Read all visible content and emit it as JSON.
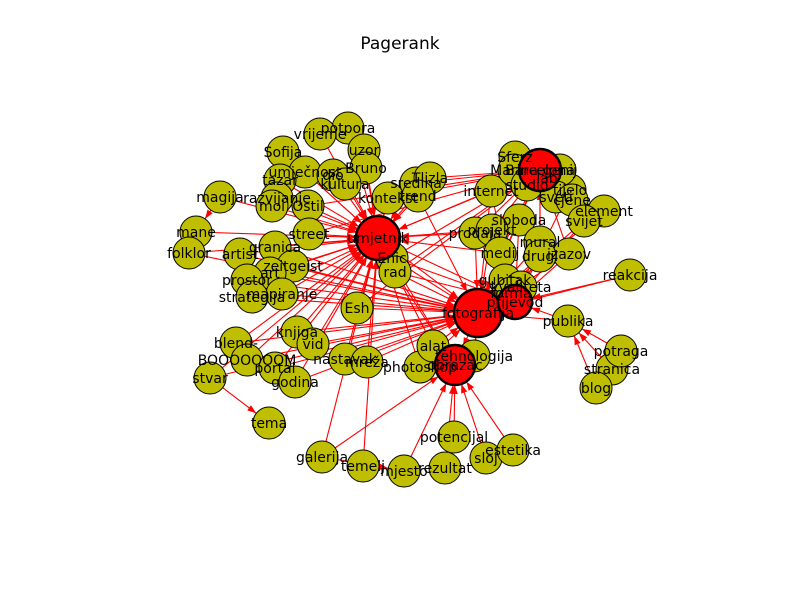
{
  "title": "Pagerank",
  "colors": {
    "node": "#bfbf00",
    "hub": "#ff0000",
    "edge": "#ff0000",
    "outline": "#000000"
  },
  "nodes": {
    "umjetnik": {
      "label": "umjetnik",
      "hub": true
    },
    "fotografija": {
      "label": "fotografija",
      "hub": true
    },
    "dizajn": {
      "label": "Barcelona",
      "hub": true
    },
    "obrazac": {
      "label": "obrazac",
      "hub": true
    },
    "prijevod": {
      "label": "prijevod",
      "hub": true
    },
    "potpora": {
      "label": "potpora"
    },
    "vrijeme": {
      "label": "vrijeme"
    },
    "uzor": {
      "label": "uzor"
    },
    "sofija": {
      "label": "Sofija"
    },
    "bruno": {
      "label": "Bruno"
    },
    "umjecnost": {
      "label": "umječnost"
    },
    "tazar": {
      "label": "tazar"
    },
    "dio": {
      "label": "dio"
    },
    "kultura": {
      "label": "kultura"
    },
    "razvijanje": {
      "label": "razvijanje"
    },
    "magija": {
      "label": "magija"
    },
    "moi": {
      "label": "moi"
    },
    "ostil": {
      "label": "Ostil"
    },
    "kontekst": {
      "label": "kontekst"
    },
    "sredina": {
      "label": "sredina"
    },
    "tlizla": {
      "label": "Tlizla"
    },
    "trend": {
      "label": "trend"
    },
    "mane": {
      "label": "mane"
    },
    "folklor": {
      "label": "folklor"
    },
    "artist": {
      "label": "artist"
    },
    "granica": {
      "label": "granica"
    },
    "street": {
      "label": "street"
    },
    "zeitgeist": {
      "label": "zeitgeist"
    },
    "enic": {
      "label": "Enic"
    },
    "rad": {
      "label": "rad"
    },
    "art": {
      "label": "art"
    },
    "prostor": {
      "label": "prostor"
    },
    "mapiranje": {
      "label": "mapiranje"
    },
    "strategija": {
      "label": "strategija"
    },
    "esh": {
      "label": "Esh"
    },
    "knjiga": {
      "label": "knjiga"
    },
    "blend": {
      "label": "blend-"
    },
    "vid": {
      "label": "vid"
    },
    "booom": {
      "label": "BOOOOOOOM"
    },
    "portal": {
      "label": "portal"
    },
    "stvar": {
      "label": "stvar"
    },
    "godina": {
      "label": "godina"
    },
    "nastavak": {
      "label": "nastavak"
    },
    "mreza": {
      "label": "mreža"
    },
    "tema": {
      "label": "tema"
    },
    "photoshop": {
      "label": "photoshop"
    },
    "alat": {
      "label": "alat"
    },
    "tehnologija": {
      "label": "tehnologija"
    },
    "galerija": {
      "label": "galerija"
    },
    "temelj": {
      "label": "temelj"
    },
    "mjesto": {
      "label": "mjesto"
    },
    "rezultat": {
      "label": "rezultat"
    },
    "potencijal": {
      "label": "potencijal"
    },
    "sloj": {
      "label": "sloj"
    },
    "estetika": {
      "label": "estetika"
    },
    "internet": {
      "label": "internet"
    },
    "sferz": {
      "label": "Sferz"
    },
    "marina": {
      "label": "Marina"
    },
    "studio": {
      "label": "studio"
    },
    "lab": {
      "label": "lab"
    },
    "tijelo": {
      "label": "tijelo"
    },
    "genij": {
      "label": "genij"
    },
    "element": {
      "label": "element"
    },
    "sveti": {
      "label": "sveti"
    },
    "cjene": {
      "label": "cjene"
    },
    "svijet": {
      "label": "svijet"
    },
    "sloboda": {
      "label": "sloboda"
    },
    "prodaja": {
      "label": "prodaja"
    },
    "projekt": {
      "label": "projekt"
    },
    "mural": {
      "label": "mural"
    },
    "izazov": {
      "label": "izazov"
    },
    "medij": {
      "label": "medij"
    },
    "drugi": {
      "label": "drugi"
    },
    "gubitak": {
      "label": "gubitak"
    },
    "kvaliteta": {
      "label": "kvaliteta"
    },
    "forma": {
      "label": "forma"
    },
    "reakcija": {
      "label": "reakcija"
    },
    "publika": {
      "label": "publika"
    },
    "stranica": {
      "label": "stranica"
    },
    "potraga": {
      "label": "potraga"
    },
    "blog": {
      "label": "blog"
    }
  }
}
